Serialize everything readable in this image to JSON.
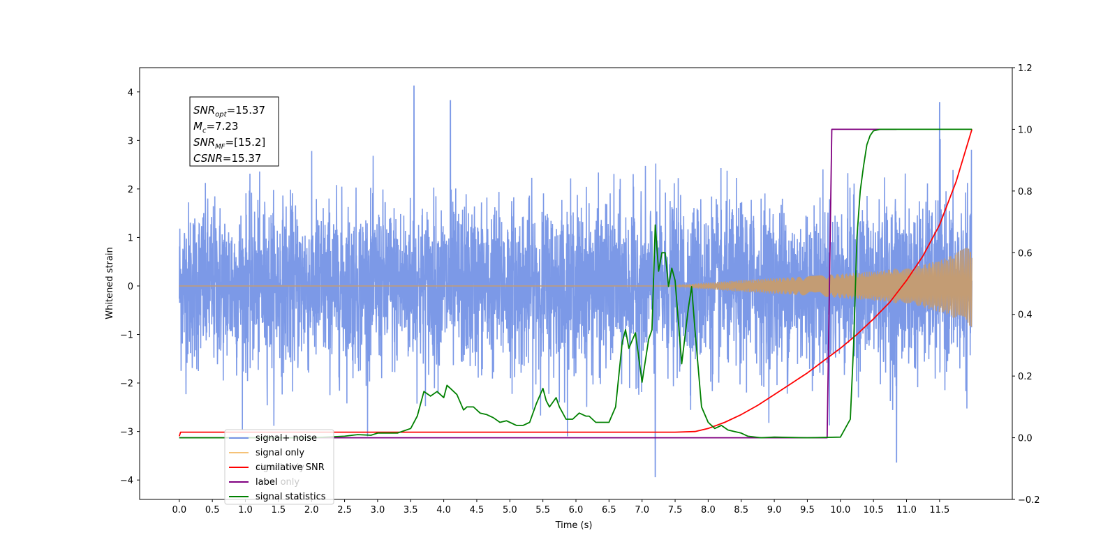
{
  "chart_data": {
    "type": "line",
    "xlabel": "Time (s)",
    "ylabel_left": "Whitened strain",
    "ylabel_right": "",
    "xlim": [
      -0.6,
      12.6
    ],
    "ylim_left": [
      -4.4,
      4.5
    ],
    "ylim_right": [
      -0.2,
      1.2
    ],
    "x_ticks": [
      "0.0",
      "0.5",
      "1.0",
      "1.5",
      "2.0",
      "2.5",
      "3.0",
      "3.5",
      "4.0",
      "4.5",
      "5.0",
      "5.5",
      "6.0",
      "6.5",
      "7.0",
      "7.5",
      "8.0",
      "8.5",
      "9.0",
      "9.5",
      "10.0",
      "10.5",
      "11.0",
      "11.5"
    ],
    "y_left_ticks": [
      "−4",
      "−3",
      "−2",
      "−1",
      "0",
      "1",
      "2",
      "3",
      "4"
    ],
    "y_right_ticks": [
      "−0.2",
      "0.0",
      "0.2",
      "0.4",
      "0.6",
      "0.8",
      "1.0",
      "1.2"
    ],
    "grid": false,
    "legend_position": "lower-left",
    "annotation": {
      "lines": [
        {
          "base": "SNR",
          "sub": "opt",
          "value": "=15.37"
        },
        {
          "base": "M",
          "sub": "c",
          "value": "=7.23"
        },
        {
          "base": "SNR",
          "sub": "MF",
          "value": "=[15.2]"
        },
        {
          "base": "CSNR",
          "sub": "",
          "value": "=15.37"
        }
      ]
    },
    "legend": [
      {
        "label": "signal+ noise",
        "color": "#7593e6"
      },
      {
        "label": "signal only",
        "color": "#f5c277"
      },
      {
        "label": "cumilative SNR",
        "color": "#ff0000"
      },
      {
        "label": "label",
        "color": "#800080"
      },
      {
        "label": "signal statistics",
        "color": "#008000"
      }
    ],
    "ghost_legend": [
      "signal only",
      "label only",
      "signal statistics"
    ],
    "series": [
      {
        "name": "signal+ noise",
        "axis": "left",
        "color": "#7593e6",
        "description_values": {
          "x_start": 0.0,
          "x_end": 11.99,
          "noise_std": 0.85,
          "peaks": [
            [
              3.55,
              4.12
            ],
            [
              7.2,
              -3.93
            ],
            [
              10.85,
              -3.63
            ],
            [
              11.5,
              3.78
            ],
            [
              4.1,
              3.82
            ]
          ]
        }
      },
      {
        "name": "signal only",
        "axis": "left",
        "color": "#c39c74",
        "envelope": {
          "x": [
            0.0,
            7.5,
            7.8,
            8.5,
            9.5,
            10.5,
            11.2,
            11.6,
            11.99
          ],
          "amp": [
            0.0,
            0.0,
            0.05,
            0.12,
            0.2,
            0.3,
            0.42,
            0.58,
            0.85
          ]
        }
      },
      {
        "name": "cumilative SNR",
        "axis": "right",
        "color": "#ff0000",
        "x": [
          0.0,
          0.02,
          7.5,
          7.8,
          8.0,
          8.25,
          8.5,
          8.75,
          9.0,
          9.25,
          9.5,
          9.75,
          10.0,
          10.25,
          10.5,
          10.75,
          11.0,
          11.25,
          11.5,
          11.75,
          11.99
        ],
        "values": [
          0.005,
          0.018,
          0.018,
          0.02,
          0.03,
          0.05,
          0.075,
          0.105,
          0.14,
          0.175,
          0.21,
          0.25,
          0.29,
          0.335,
          0.385,
          0.44,
          0.51,
          0.59,
          0.69,
          0.83,
          1.0
        ]
      },
      {
        "name": "label",
        "axis": "right",
        "color": "#800080",
        "x": [
          0.0,
          9.8,
          9.87,
          10.85
        ],
        "values": [
          0.0,
          0.0,
          1.0,
          1.0
        ]
      },
      {
        "name": "signal statistics",
        "axis": "right",
        "color": "#008000",
        "x": [
          0.0,
          1.0,
          2.0,
          2.5,
          2.7,
          2.9,
          3.0,
          3.3,
          3.5,
          3.6,
          3.7,
          3.8,
          3.9,
          4.0,
          4.05,
          4.1,
          4.2,
          4.3,
          4.35,
          4.45,
          4.55,
          4.65,
          4.75,
          4.85,
          4.95,
          5.0,
          5.1,
          5.2,
          5.3,
          5.4,
          5.5,
          5.55,
          5.6,
          5.7,
          5.75,
          5.8,
          5.85,
          5.95,
          6.05,
          6.15,
          6.2,
          6.3,
          6.4,
          6.5,
          6.6,
          6.7,
          6.75,
          6.8,
          6.9,
          7.0,
          7.1,
          7.15,
          7.2,
          7.25,
          7.3,
          7.35,
          7.4,
          7.45,
          7.5,
          7.6,
          7.7,
          7.75,
          7.8,
          7.9,
          8.0,
          8.1,
          8.2,
          8.3,
          8.4,
          8.5,
          8.6,
          8.8,
          9.0,
          9.5,
          10.0,
          10.15,
          10.2,
          10.25,
          10.3,
          10.35,
          10.4,
          10.45,
          10.5,
          10.6,
          10.7,
          10.8,
          11.0,
          11.99
        ],
        "values": [
          0.0,
          0.0,
          0.0,
          0.005,
          0.01,
          0.008,
          0.015,
          0.015,
          0.03,
          0.07,
          0.15,
          0.135,
          0.15,
          0.13,
          0.17,
          0.16,
          0.14,
          0.09,
          0.1,
          0.1,
          0.08,
          0.075,
          0.065,
          0.05,
          0.055,
          0.05,
          0.04,
          0.04,
          0.05,
          0.11,
          0.16,
          0.12,
          0.1,
          0.13,
          0.1,
          0.08,
          0.06,
          0.06,
          0.08,
          0.07,
          0.07,
          0.05,
          0.05,
          0.05,
          0.1,
          0.31,
          0.35,
          0.29,
          0.34,
          0.18,
          0.32,
          0.35,
          0.69,
          0.54,
          0.6,
          0.6,
          0.49,
          0.55,
          0.51,
          0.24,
          0.42,
          0.49,
          0.35,
          0.1,
          0.05,
          0.03,
          0.04,
          0.025,
          0.02,
          0.015,
          0.005,
          0.0,
          0.002,
          0.0,
          0.002,
          0.06,
          0.3,
          0.65,
          0.8,
          0.88,
          0.95,
          0.98,
          0.995,
          1.0,
          1.0,
          1.0,
          1.0,
          1.0
        ]
      }
    ]
  }
}
